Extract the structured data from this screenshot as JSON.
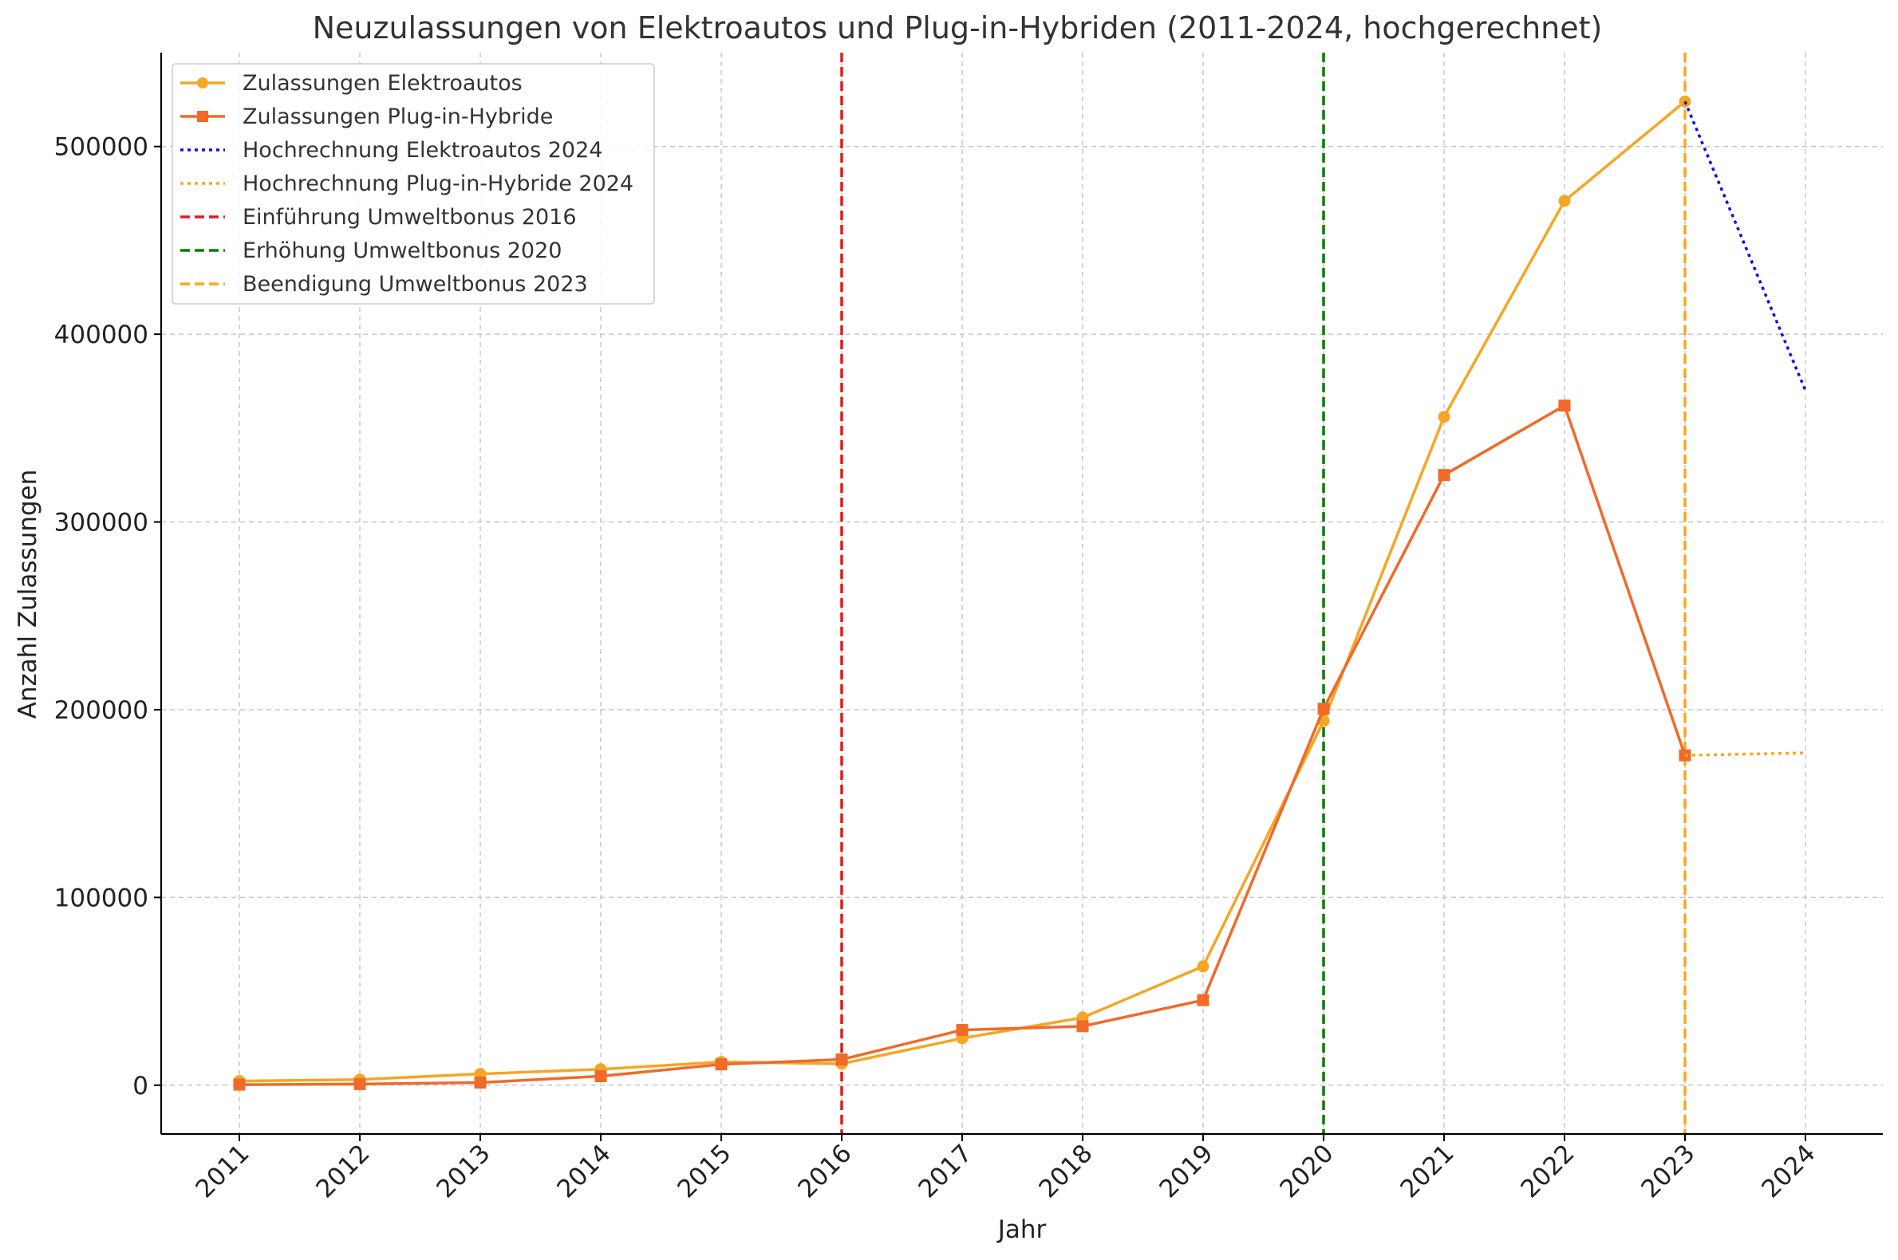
{
  "chart_data": {
    "type": "line",
    "title": "Neuzulassungen von Elektroautos und Plug-in-Hybriden (2011-2024, hochgerechnet)",
    "xlabel": "Jahr",
    "ylabel": "Anzahl Zulassungen",
    "categories": [
      "2011",
      "2012",
      "2013",
      "2014",
      "2015",
      "2016",
      "2017",
      "2018",
      "2019",
      "2020",
      "2021",
      "2022",
      "2023",
      "2024"
    ],
    "x": [
      2011,
      2012,
      2013,
      2014,
      2015,
      2016,
      2017,
      2018,
      2019,
      2020,
      2021,
      2022,
      2023,
      2024
    ],
    "ylim": [
      -26000,
      550000
    ],
    "yticks": [
      0,
      100000,
      200000,
      300000,
      400000,
      500000
    ],
    "ytick_labels": [
      "0",
      "100000",
      "200000",
      "300000",
      "400000",
      "500000"
    ],
    "grid": true,
    "legend_position": "top-left",
    "series": [
      {
        "name": "Zulassungen Elektroautos",
        "color": "#f5a623",
        "style": "solid",
        "marker": "circle",
        "x": [
          2011,
          2012,
          2013,
          2014,
          2015,
          2016,
          2017,
          2018,
          2019,
          2020,
          2021,
          2022,
          2023
        ],
        "values": [
          2200,
          3000,
          6000,
          8500,
          12400,
          11400,
          25000,
          36000,
          63300,
          194000,
          356000,
          471000,
          524000
        ]
      },
      {
        "name": "Zulassungen Plug-in-Hybride",
        "color": "#f06a28",
        "style": "solid",
        "marker": "square",
        "x": [
          2011,
          2012,
          2013,
          2014,
          2015,
          2016,
          2017,
          2018,
          2019,
          2020,
          2021,
          2022,
          2023
        ],
        "values": [
          300,
          600,
          1400,
          4800,
          11100,
          13700,
          29400,
          31400,
          45300,
          200500,
          325000,
          362000,
          175700
        ]
      },
      {
        "name": "Hochrechnung Elektroautos 2024",
        "color": "#1010e6",
        "style": "dotted",
        "marker": "none",
        "x": [
          2023,
          2024
        ],
        "values": [
          524000,
          370000
        ]
      },
      {
        "name": "Hochrechnung Plug-in-Hybride 2024",
        "color": "#ffa51a",
        "style": "dotted",
        "marker": "none",
        "x": [
          2023,
          2024
        ],
        "values": [
          175700,
          177000
        ]
      }
    ],
    "vlines": [
      {
        "name": "Einführung Umweltbonus 2016",
        "x": 2016,
        "color": "#e31a1c",
        "style": "dashed"
      },
      {
        "name": "Erhöhung Umweltbonus 2020",
        "x": 2020,
        "color": "#008000",
        "style": "dashed"
      },
      {
        "name": "Beendigung Umweltbonus 2023",
        "x": 2023,
        "color": "#ffa51a",
        "style": "dashed"
      }
    ],
    "legend": [
      {
        "label": "Zulassungen Elektroautos",
        "color": "#f5a623",
        "style": "solid",
        "marker": "circle"
      },
      {
        "label": "Zulassungen Plug-in-Hybride",
        "color": "#f06a28",
        "style": "solid",
        "marker": "square"
      },
      {
        "label": "Hochrechnung Elektroautos 2024",
        "color": "#1010e6",
        "style": "dotted",
        "marker": "none"
      },
      {
        "label": "Hochrechnung Plug-in-Hybride 2024",
        "color": "#ffa51a",
        "style": "dotted",
        "marker": "none"
      },
      {
        "label": "Einführung Umweltbonus 2016",
        "color": "#e31a1c",
        "style": "dashed",
        "marker": "none"
      },
      {
        "label": "Erhöhung Umweltbonus 2020",
        "color": "#008000",
        "style": "dashed",
        "marker": "none"
      },
      {
        "label": "Beendigung Umweltbonus 2023",
        "color": "#ffa51a",
        "style": "dashed",
        "marker": "none"
      }
    ]
  }
}
